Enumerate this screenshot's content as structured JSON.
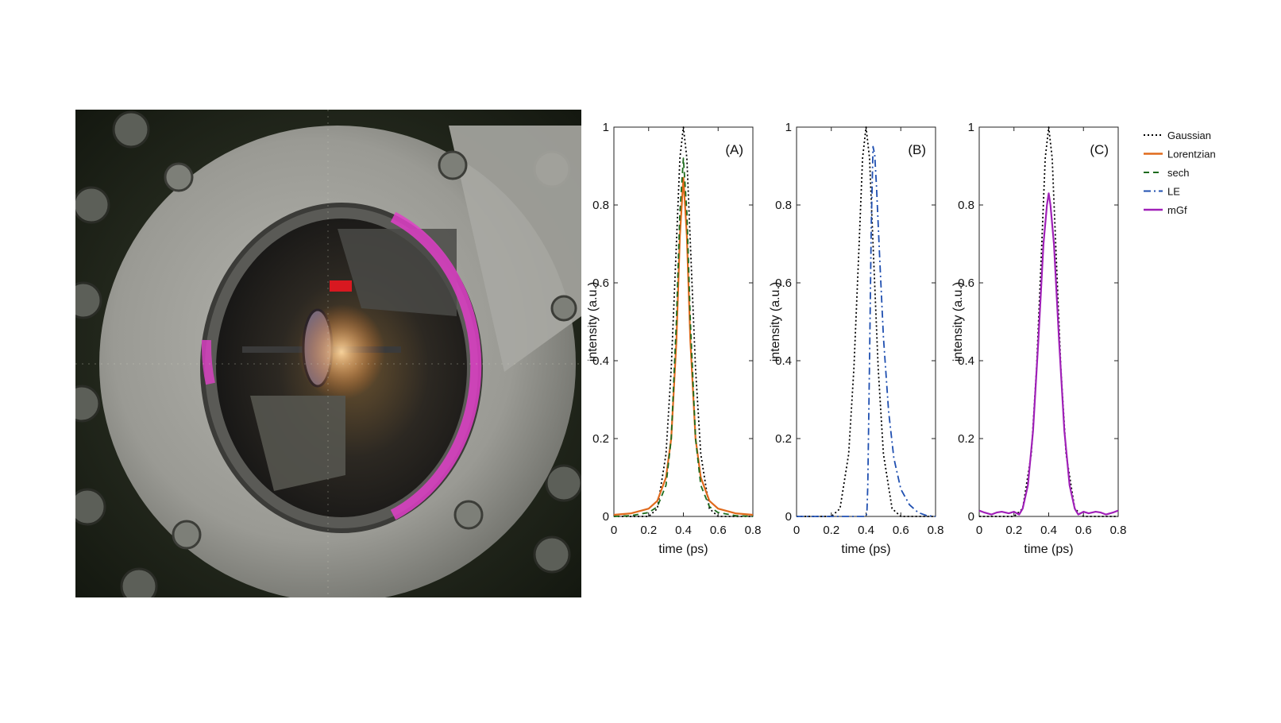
{
  "photo": {
    "subject": "vacuum chamber viewport with magenta plasma glow",
    "colors": {
      "flange": "#9a9a94",
      "plasma": "#e040c8",
      "background": "#1e2418"
    }
  },
  "chart_data": [
    {
      "type": "line",
      "panel_label": "(A)",
      "xlabel": "time (ps)",
      "ylabel": "intensity (a.u.)",
      "xlim": [
        0,
        0.8
      ],
      "ylim": [
        0,
        1
      ],
      "xticks": [
        "0",
        "0.2",
        "0.4",
        "0.6",
        "0.8"
      ],
      "yticks": [
        "0",
        "0.2",
        "0.4",
        "0.6",
        "0.8",
        "1"
      ],
      "series": [
        {
          "name": "Gaussian",
          "color": "#000000",
          "style": "dotted",
          "x": [
            0.0,
            0.2,
            0.25,
            0.3,
            0.33,
            0.36,
            0.38,
            0.4,
            0.42,
            0.44,
            0.47,
            0.5,
            0.55,
            0.6,
            0.8
          ],
          "y": [
            0,
            0,
            0.02,
            0.16,
            0.38,
            0.7,
            0.92,
            1.0,
            0.92,
            0.7,
            0.38,
            0.16,
            0.02,
            0,
            0
          ]
        },
        {
          "name": "Lorentzian",
          "color": "#e06a1c",
          "style": "solid",
          "x": [
            0.0,
            0.1,
            0.2,
            0.25,
            0.3,
            0.33,
            0.36,
            0.38,
            0.4,
            0.42,
            0.44,
            0.47,
            0.5,
            0.55,
            0.6,
            0.7,
            0.8
          ],
          "y": [
            0.004,
            0.008,
            0.02,
            0.04,
            0.1,
            0.2,
            0.45,
            0.72,
            0.87,
            0.72,
            0.45,
            0.2,
            0.1,
            0.04,
            0.02,
            0.008,
            0.004
          ]
        },
        {
          "name": "sech",
          "color": "#1d6b1d",
          "style": "dashed",
          "x": [
            0.0,
            0.1,
            0.2,
            0.25,
            0.3,
            0.33,
            0.36,
            0.38,
            0.4,
            0.42,
            0.44,
            0.47,
            0.5,
            0.55,
            0.6,
            0.7,
            0.8
          ],
          "y": [
            0,
            0.002,
            0.01,
            0.025,
            0.08,
            0.2,
            0.5,
            0.78,
            0.92,
            0.78,
            0.5,
            0.2,
            0.08,
            0.025,
            0.01,
            0.002,
            0
          ]
        }
      ]
    },
    {
      "type": "line",
      "panel_label": "(B)",
      "xlabel": "time (ps)",
      "ylabel": "intensity (a.u.)",
      "xlim": [
        0,
        0.8
      ],
      "ylim": [
        0,
        1
      ],
      "xticks": [
        "0",
        "0.2",
        "0.4",
        "0.6",
        "0.8"
      ],
      "yticks": [
        "0",
        "0.2",
        "0.4",
        "0.6",
        "0.8",
        "1"
      ],
      "series": [
        {
          "name": "Gaussian",
          "color": "#000000",
          "style": "dotted",
          "x": [
            0.0,
            0.2,
            0.25,
            0.3,
            0.33,
            0.36,
            0.38,
            0.4,
            0.42,
            0.44,
            0.47,
            0.5,
            0.55,
            0.6,
            0.8
          ],
          "y": [
            0,
            0,
            0.02,
            0.16,
            0.38,
            0.7,
            0.92,
            1.0,
            0.92,
            0.7,
            0.38,
            0.16,
            0.02,
            0,
            0
          ]
        },
        {
          "name": "LE",
          "color": "#1f4fb0",
          "style": "dashdot",
          "x": [
            0.0,
            0.3,
            0.4,
            0.405,
            0.41,
            0.42,
            0.43,
            0.44,
            0.45,
            0.46,
            0.48,
            0.5,
            0.53,
            0.56,
            0.6,
            0.65,
            0.7,
            0.75,
            0.8
          ],
          "y": [
            0,
            0,
            0,
            0.01,
            0.08,
            0.4,
            0.75,
            0.95,
            0.93,
            0.85,
            0.65,
            0.46,
            0.27,
            0.15,
            0.07,
            0.03,
            0.01,
            0.002,
            0
          ]
        }
      ]
    },
    {
      "type": "line",
      "panel_label": "(C)",
      "xlabel": "time (ps)",
      "ylabel": "intensity (a.u.)",
      "xlim": [
        0,
        0.8
      ],
      "ylim": [
        0,
        1
      ],
      "xticks": [
        "0",
        "0.2",
        "0.4",
        "0.6",
        "0.8"
      ],
      "yticks": [
        "0",
        "0.2",
        "0.4",
        "0.6",
        "0.8",
        "1"
      ],
      "series": [
        {
          "name": "Gaussian",
          "color": "#000000",
          "style": "dotted",
          "x": [
            0.0,
            0.2,
            0.25,
            0.3,
            0.33,
            0.36,
            0.38,
            0.4,
            0.42,
            0.44,
            0.47,
            0.5,
            0.55,
            0.6,
            0.8
          ],
          "y": [
            0,
            0,
            0.02,
            0.16,
            0.38,
            0.7,
            0.92,
            1.0,
            0.92,
            0.7,
            0.38,
            0.16,
            0.02,
            0,
            0
          ]
        },
        {
          "name": "mGf",
          "color": "#a020b8",
          "style": "solid",
          "x": [
            0.0,
            0.03,
            0.07,
            0.1,
            0.13,
            0.17,
            0.2,
            0.23,
            0.25,
            0.28,
            0.31,
            0.34,
            0.37,
            0.39,
            0.4,
            0.41,
            0.43,
            0.46,
            0.49,
            0.52,
            0.55,
            0.57,
            0.6,
            0.63,
            0.67,
            0.7,
            0.73,
            0.77,
            0.8
          ],
          "y": [
            0.015,
            0.01,
            0.005,
            0.01,
            0.012,
            0.008,
            0.012,
            0.005,
            0.02,
            0.08,
            0.22,
            0.45,
            0.7,
            0.8,
            0.83,
            0.8,
            0.7,
            0.45,
            0.22,
            0.08,
            0.02,
            0.005,
            0.012,
            0.008,
            0.012,
            0.01,
            0.005,
            0.01,
            0.015
          ]
        }
      ]
    }
  ],
  "legend": {
    "entries": [
      {
        "name": "Gaussian",
        "color": "#000000",
        "style": "dotted"
      },
      {
        "name": "Lorentzian",
        "color": "#e06a1c",
        "style": "solid"
      },
      {
        "name": "sech",
        "color": "#1d6b1d",
        "style": "dashed"
      },
      {
        "name": "LE",
        "color": "#1f4fb0",
        "style": "dashdot"
      },
      {
        "name": "mGf",
        "color": "#a020b8",
        "style": "solid"
      }
    ]
  }
}
